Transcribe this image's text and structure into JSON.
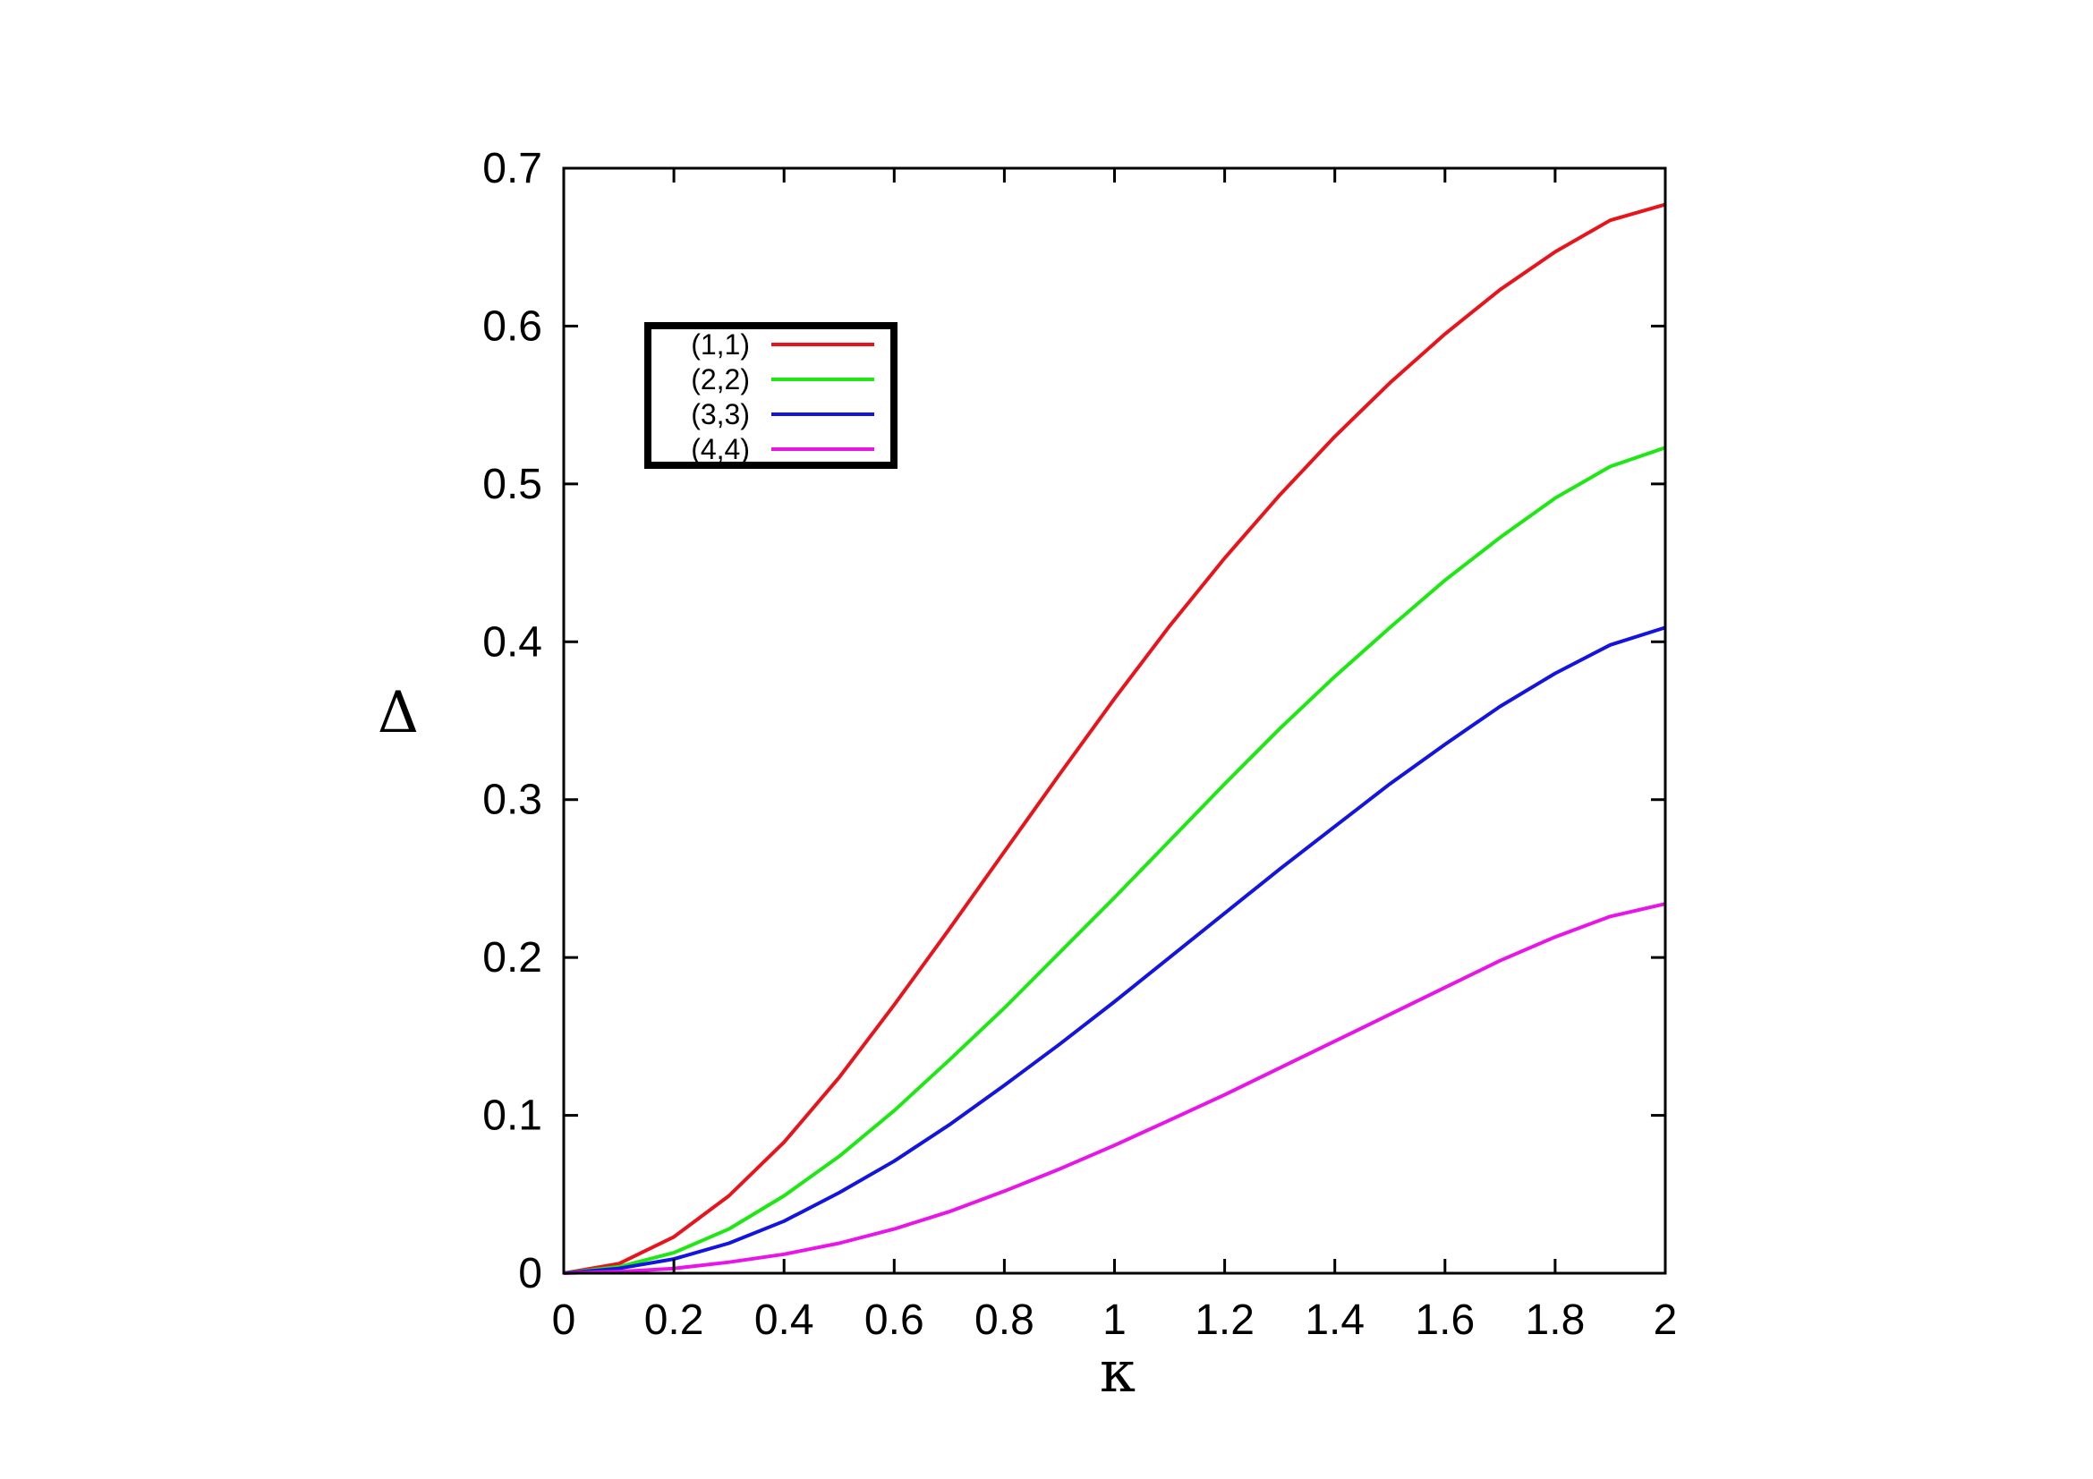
{
  "chart_data": {
    "type": "line",
    "title": "",
    "xlabel": "κ",
    "ylabel": "Δ",
    "xlim": [
      0,
      2
    ],
    "ylim": [
      0,
      0.7
    ],
    "xticks": [
      "0",
      "0.2",
      "0.4",
      "0.6",
      "0.8",
      "1",
      "1.2",
      "1.4",
      "1.6",
      "1.8",
      "2"
    ],
    "yticks": [
      "0",
      "0.1",
      "0.2",
      "0.3",
      "0.4",
      "0.5",
      "0.6",
      "0.7"
    ],
    "grid": false,
    "legend_position": "top-left",
    "x": [
      0,
      0.1,
      0.2,
      0.3,
      0.4,
      0.5,
      0.6,
      0.7,
      0.8,
      0.9,
      1.0,
      1.1,
      1.2,
      1.3,
      1.4,
      1.5,
      1.6,
      1.7,
      1.8,
      1.9,
      2.0
    ],
    "series": [
      {
        "name": "(1,1)",
        "color": "#e8141b",
        "values": [
          0,
          0.006,
          0.023,
          0.049,
          0.083,
          0.124,
          0.17,
          0.218,
          0.267,
          0.316,
          0.364,
          0.41,
          0.453,
          0.493,
          0.53,
          0.564,
          0.595,
          0.623,
          0.647,
          0.667,
          0.677
        ]
      },
      {
        "name": "(2,2)",
        "color": "#1ee814",
        "values": [
          0,
          0.004,
          0.013,
          0.028,
          0.049,
          0.074,
          0.103,
          0.135,
          0.168,
          0.203,
          0.238,
          0.274,
          0.31,
          0.345,
          0.378,
          0.409,
          0.439,
          0.466,
          0.491,
          0.511,
          0.523
        ]
      },
      {
        "name": "(3,3)",
        "color": "#1414e0",
        "values": [
          0,
          0.003,
          0.009,
          0.019,
          0.033,
          0.051,
          0.071,
          0.094,
          0.119,
          0.145,
          0.172,
          0.2,
          0.228,
          0.256,
          0.283,
          0.31,
          0.335,
          0.359,
          0.38,
          0.398,
          0.409
        ]
      },
      {
        "name": "(4,4)",
        "color": "#e814e8",
        "values": [
          0,
          0.001,
          0.003,
          0.007,
          0.012,
          0.019,
          0.028,
          0.039,
          0.052,
          0.066,
          0.081,
          0.097,
          0.113,
          0.13,
          0.147,
          0.164,
          0.181,
          0.198,
          0.213,
          0.226,
          0.234
        ]
      }
    ]
  }
}
